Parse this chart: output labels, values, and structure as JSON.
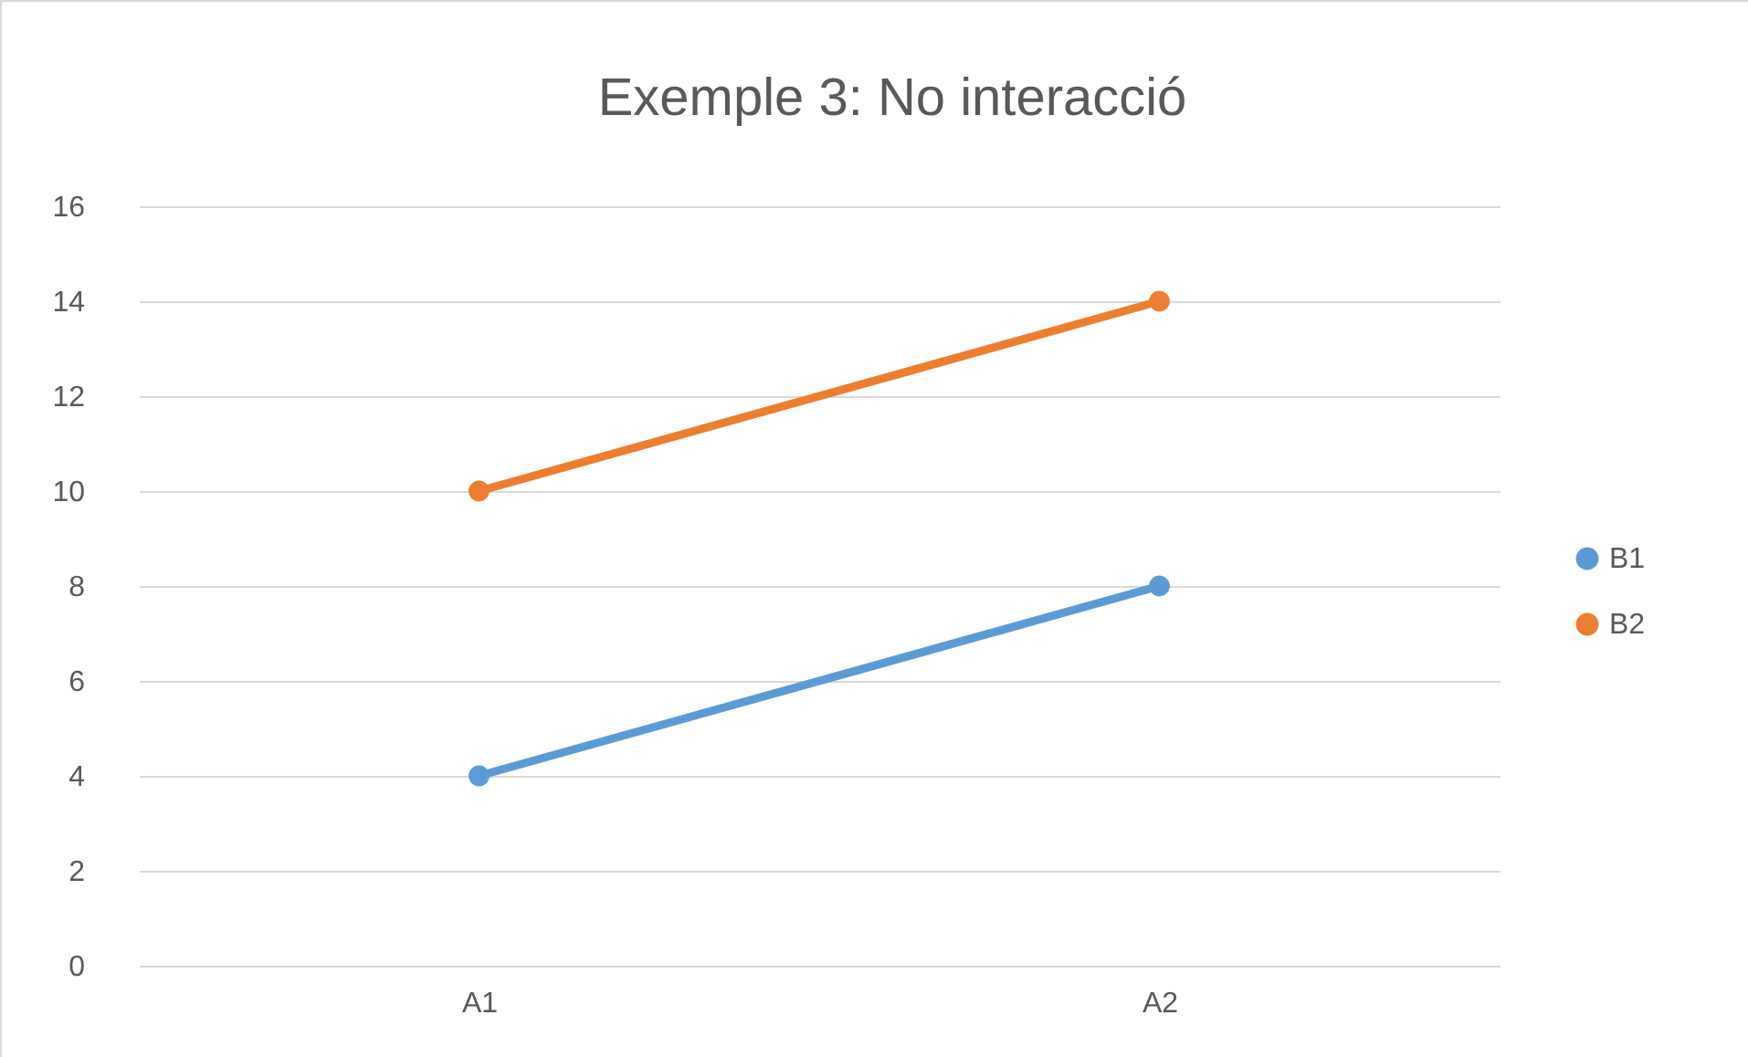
{
  "chart_data": {
    "type": "line",
    "title": "Exemple 3: No interacció",
    "categories": [
      "A1",
      "A2"
    ],
    "series": [
      {
        "name": "B1",
        "color": "#5b9bd5",
        "values": [
          4,
          8
        ]
      },
      {
        "name": "B2",
        "color": "#ed7d31",
        "values": [
          10,
          14
        ]
      }
    ],
    "ylim": [
      0,
      16
    ],
    "yticks": [
      0,
      2,
      4,
      6,
      8,
      10,
      12,
      14,
      16
    ],
    "grid": "y",
    "legend": "right",
    "marker": "circle",
    "line_style": "solid"
  }
}
